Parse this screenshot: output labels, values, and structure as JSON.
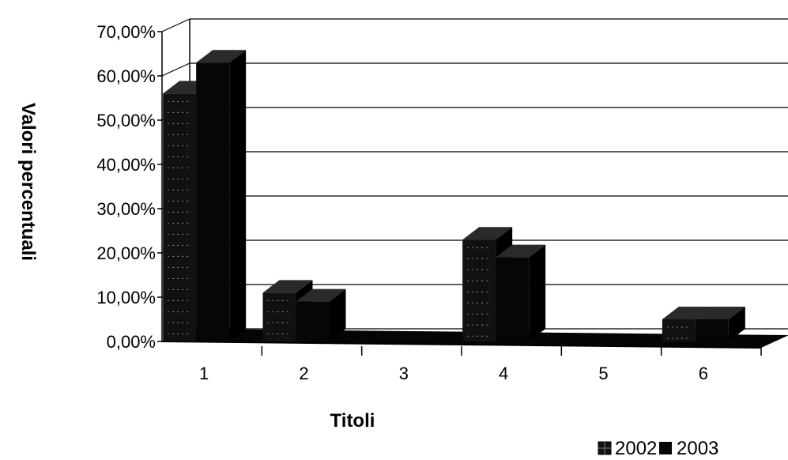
{
  "chart_data": {
    "type": "bar",
    "title": "",
    "xlabel": "Titoli",
    "ylabel": "Valori percentuali",
    "categories": [
      "1",
      "2",
      "3",
      "4",
      "5",
      "6"
    ],
    "series": [
      {
        "name": "2002",
        "values": [
          0.56,
          0.11,
          0.0,
          0.23,
          0.0,
          0.05
        ]
      },
      {
        "name": "2003",
        "values": [
          0.63,
          0.09,
          0.0,
          0.19,
          0.0,
          0.05
        ]
      }
    ],
    "ylim": [
      0,
      0.7
    ],
    "yticks": [
      "0,00%",
      "10,00%",
      "20,00%",
      "30,00%",
      "40,00%",
      "50,00%",
      "60,00%",
      "70,00%"
    ],
    "grid": true,
    "legend_position": "bottom-right",
    "colors": {
      "2002": "#111111",
      "2003": "#060606",
      "gridline": "#000000",
      "floor": "#050505"
    }
  }
}
